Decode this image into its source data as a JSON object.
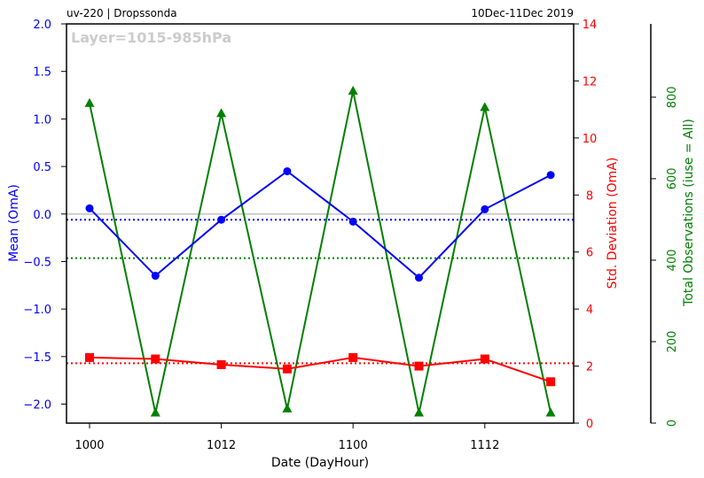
{
  "header": {
    "left": "uv-220  |  Dropssonda",
    "right": "10Dec-11Dec 2019"
  },
  "chart_data": {
    "type": "line",
    "annotation": "Layer=1015-985hPa",
    "xlabel": "Date (DayHour)",
    "x_tick_labels": [
      "1000",
      "1012",
      "1100",
      "1112"
    ],
    "x": [
      0,
      1,
      2,
      3,
      4,
      5,
      6,
      7
    ],
    "axes": {
      "left": {
        "label": "Mean (OmA)",
        "ylim": [
          -2.2,
          2.0
        ],
        "ticks": [
          -2.0,
          -1.5,
          -1.0,
          -0.5,
          0.0,
          0.5,
          1.0,
          1.5,
          2.0
        ],
        "tick_labels": [
          "−2.0",
          "−1.5",
          "−1.0",
          "−0.5",
          "0.0",
          "0.5",
          "1.0",
          "1.5",
          "2.0"
        ],
        "color": "#0000ff"
      },
      "right": {
        "label": "Std. Deviation (OmA)",
        "ylim": [
          0,
          14
        ],
        "ticks": [
          0,
          2,
          4,
          6,
          8,
          10,
          12,
          14
        ],
        "tick_labels": [
          "0",
          "2",
          "4",
          "6",
          "8",
          "10",
          "12",
          "14"
        ],
        "color": "#ff0000"
      },
      "outer": {
        "label": "Total Observations (iuse = All)",
        "ylim": [
          0,
          980
        ],
        "ticks": [
          0,
          200,
          400,
          600,
          800
        ],
        "tick_labels": [
          "0",
          "200",
          "400",
          "600",
          "800"
        ],
        "color": "#008000"
      }
    },
    "series": [
      {
        "axis": "left",
        "marker": "circle",
        "color": "#0000ff",
        "values": [
          0.06,
          -0.65,
          -0.06,
          0.45,
          -0.08,
          -0.67,
          0.05,
          0.41
        ],
        "mean": -0.06
      },
      {
        "axis": "right",
        "marker": "square",
        "color": "#ff0000",
        "values": [
          2.3,
          2.25,
          2.05,
          1.9,
          2.3,
          2.0,
          2.25,
          1.45
        ],
        "mean": 2.1
      },
      {
        "axis": "outer",
        "marker": "triangle",
        "color": "#008000",
        "values": [
          785,
          25,
          760,
          35,
          815,
          25,
          775,
          25
        ],
        "mean": 405
      }
    ],
    "zero_line_color": "#cccccc"
  }
}
